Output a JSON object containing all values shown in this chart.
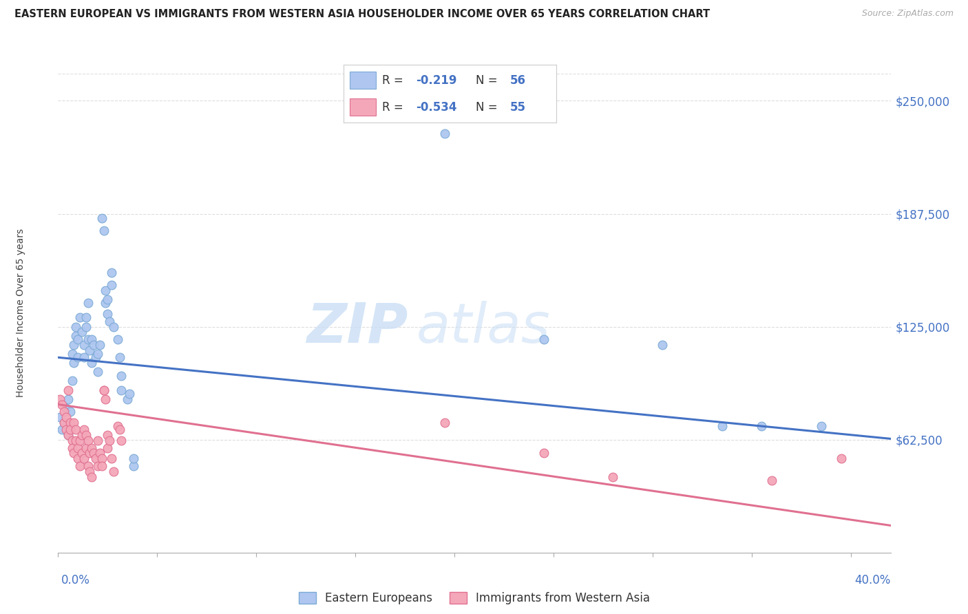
{
  "title": "EASTERN EUROPEAN VS IMMIGRANTS FROM WESTERN ASIA HOUSEHOLDER INCOME OVER 65 YEARS CORRELATION CHART",
  "source": "Source: ZipAtlas.com",
  "ylabel": "Householder Income Over 65 years",
  "watermark_zip": "ZIP",
  "watermark_atlas": "atlas",
  "legend_items": [
    {
      "color": "#aec6f0",
      "edge": "#7baad4",
      "r": "-0.219",
      "n": "56",
      "label": "Eastern Europeans"
    },
    {
      "color": "#f4a7b9",
      "edge": "#e07090",
      "r": "-0.534",
      "n": "55",
      "label": "Immigrants from Western Asia"
    }
  ],
  "blue_scatter": [
    [
      0.001,
      75000
    ],
    [
      0.002,
      68000
    ],
    [
      0.003,
      72000
    ],
    [
      0.004,
      80000
    ],
    [
      0.005,
      65000
    ],
    [
      0.005,
      85000
    ],
    [
      0.006,
      70000
    ],
    [
      0.006,
      78000
    ],
    [
      0.007,
      95000
    ],
    [
      0.007,
      110000
    ],
    [
      0.008,
      105000
    ],
    [
      0.008,
      115000
    ],
    [
      0.009,
      120000
    ],
    [
      0.009,
      125000
    ],
    [
      0.01,
      118000
    ],
    [
      0.01,
      108000
    ],
    [
      0.011,
      130000
    ],
    [
      0.012,
      122000
    ],
    [
      0.013,
      115000
    ],
    [
      0.013,
      108000
    ],
    [
      0.014,
      125000
    ],
    [
      0.014,
      130000
    ],
    [
      0.015,
      138000
    ],
    [
      0.015,
      118000
    ],
    [
      0.016,
      112000
    ],
    [
      0.017,
      105000
    ],
    [
      0.017,
      118000
    ],
    [
      0.018,
      115000
    ],
    [
      0.019,
      108000
    ],
    [
      0.02,
      100000
    ],
    [
      0.02,
      110000
    ],
    [
      0.021,
      115000
    ],
    [
      0.022,
      185000
    ],
    [
      0.023,
      178000
    ],
    [
      0.024,
      145000
    ],
    [
      0.024,
      138000
    ],
    [
      0.025,
      140000
    ],
    [
      0.025,
      132000
    ],
    [
      0.026,
      128000
    ],
    [
      0.027,
      155000
    ],
    [
      0.027,
      148000
    ],
    [
      0.028,
      125000
    ],
    [
      0.03,
      118000
    ],
    [
      0.031,
      108000
    ],
    [
      0.032,
      98000
    ],
    [
      0.032,
      90000
    ],
    [
      0.035,
      85000
    ],
    [
      0.036,
      88000
    ],
    [
      0.038,
      48000
    ],
    [
      0.038,
      52000
    ],
    [
      0.195,
      232000
    ],
    [
      0.245,
      118000
    ],
    [
      0.305,
      115000
    ],
    [
      0.335,
      70000
    ],
    [
      0.355,
      70000
    ],
    [
      0.385,
      70000
    ]
  ],
  "pink_scatter": [
    [
      0.001,
      85000
    ],
    [
      0.002,
      82000
    ],
    [
      0.003,
      78000
    ],
    [
      0.003,
      72000
    ],
    [
      0.004,
      75000
    ],
    [
      0.004,
      68000
    ],
    [
      0.005,
      90000
    ],
    [
      0.005,
      65000
    ],
    [
      0.006,
      72000
    ],
    [
      0.006,
      68000
    ],
    [
      0.007,
      62000
    ],
    [
      0.007,
      58000
    ],
    [
      0.008,
      55000
    ],
    [
      0.008,
      72000
    ],
    [
      0.009,
      68000
    ],
    [
      0.009,
      62000
    ],
    [
      0.01,
      58000
    ],
    [
      0.01,
      52000
    ],
    [
      0.011,
      48000
    ],
    [
      0.011,
      62000
    ],
    [
      0.012,
      65000
    ],
    [
      0.012,
      55000
    ],
    [
      0.013,
      68000
    ],
    [
      0.013,
      52000
    ],
    [
      0.014,
      65000
    ],
    [
      0.014,
      58000
    ],
    [
      0.015,
      62000
    ],
    [
      0.015,
      48000
    ],
    [
      0.016,
      55000
    ],
    [
      0.016,
      45000
    ],
    [
      0.017,
      58000
    ],
    [
      0.017,
      42000
    ],
    [
      0.018,
      55000
    ],
    [
      0.019,
      52000
    ],
    [
      0.02,
      48000
    ],
    [
      0.02,
      62000
    ],
    [
      0.021,
      55000
    ],
    [
      0.022,
      52000
    ],
    [
      0.022,
      48000
    ],
    [
      0.023,
      90000
    ],
    [
      0.023,
      90000
    ],
    [
      0.024,
      85000
    ],
    [
      0.025,
      65000
    ],
    [
      0.025,
      58000
    ],
    [
      0.026,
      62000
    ],
    [
      0.027,
      52000
    ],
    [
      0.028,
      45000
    ],
    [
      0.03,
      70000
    ],
    [
      0.031,
      68000
    ],
    [
      0.032,
      62000
    ],
    [
      0.195,
      72000
    ],
    [
      0.245,
      55000
    ],
    [
      0.28,
      42000
    ],
    [
      0.36,
      40000
    ],
    [
      0.395,
      52000
    ]
  ],
  "blue_line": {
    "x0": 0.0,
    "y0": 108000,
    "x1": 0.42,
    "y1": 63000
  },
  "pink_line": {
    "x0": 0.0,
    "y0": 82000,
    "x1": 0.42,
    "y1": 15000
  },
  "yticks": [
    62500,
    125000,
    187500,
    250000
  ],
  "ytick_labels": [
    "$62,500",
    "$125,000",
    "$187,500",
    "$250,000"
  ],
  "ylim": [
    0,
    265000
  ],
  "xlim": [
    0.0,
    0.42
  ],
  "bg_color": "#ffffff",
  "grid_color": "#dddddd",
  "axis_color": "#4472c4",
  "title_color": "#222222",
  "source_color": "#aaaaaa"
}
